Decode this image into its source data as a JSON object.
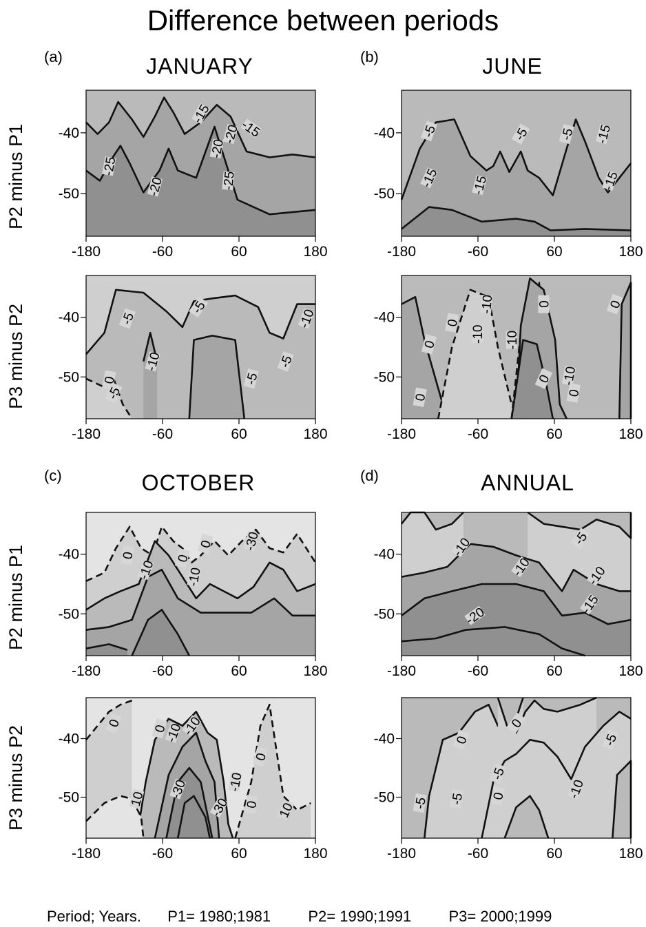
{
  "title": "Difference between periods",
  "row_labels": [
    "P2 minus P1",
    "P3 minus P2"
  ],
  "panels": [
    {
      "tag": "(a)",
      "month": "JANUARY"
    },
    {
      "tag": "(b)",
      "month": "JUNE"
    },
    {
      "tag": "(c)",
      "month": "OCTOBER"
    },
    {
      "tag": "(d)",
      "month": "ANNUAL"
    }
  ],
  "footer": {
    "period": "Period; Years.",
    "p1": "P1= 1980;1981",
    "p2": "P2= 1990;1991",
    "p3": "P3= 2000;1999"
  },
  "colors": {
    "fill_levels": [
      "#e4e4e4",
      "#cfcfcf",
      "#bababa",
      "#a5a5a5",
      "#909090"
    ],
    "contour": "#111111"
  },
  "chart_data": [
    {
      "type": "contour",
      "panel": "(a)",
      "row": "P2 minus P1",
      "x_ticks": [
        -180,
        -60,
        60,
        180
      ],
      "y_ticks": [
        -40,
        -50
      ],
      "xlim": [
        -180,
        180
      ],
      "ylim": [
        -57,
        -33
      ],
      "contour_labels": [
        "-15",
        "-15",
        "-20",
        "-20",
        "-25",
        "-20",
        "-25"
      ],
      "contour_levels": [
        -10,
        -15,
        -20,
        -25
      ]
    },
    {
      "type": "contour",
      "panel": "(b)",
      "row": "P2 minus P1",
      "x_ticks": [
        -180,
        -60,
        60,
        180
      ],
      "y_ticks": [
        -40,
        -50
      ],
      "xlim": [
        -180,
        180
      ],
      "ylim": [
        -57,
        -33
      ],
      "contour_labels": [
        "-5",
        "-5",
        "-5",
        "-15",
        "-15",
        "-15",
        "-15"
      ],
      "contour_levels": [
        -5,
        -10,
        -15,
        -20
      ]
    },
    {
      "type": "contour",
      "panel": "(a)",
      "row": "P3 minus P2",
      "x_ticks": [
        -180,
        -60,
        60,
        180
      ],
      "y_ticks": [
        -40,
        -50
      ],
      "xlim": [
        -180,
        180
      ],
      "ylim": [
        -57,
        -33
      ],
      "contour_labels": [
        "-5",
        "-5",
        "-10",
        "-10",
        "-5",
        "-5",
        "0",
        "-5"
      ],
      "contour_levels": [
        0,
        -5,
        -10
      ]
    },
    {
      "type": "contour",
      "panel": "(b)",
      "row": "P3 minus P2",
      "x_ticks": [
        -180,
        -60,
        60,
        180
      ],
      "y_ticks": [
        -40,
        -50
      ],
      "xlim": [
        -180,
        180
      ],
      "ylim": [
        -57,
        -33
      ],
      "contour_labels": [
        "-10",
        "0",
        "0",
        "-10",
        "-10",
        "0",
        "0",
        "-10",
        "0",
        "0",
        "0"
      ],
      "contour_levels": [
        10,
        0,
        -10,
        -20
      ]
    },
    {
      "type": "contour",
      "panel": "(c)",
      "row": "P2 minus P1",
      "x_ticks": [
        -180,
        -60,
        60,
        180
      ],
      "y_ticks": [
        -40,
        -50
      ],
      "xlim": [
        -180,
        180
      ],
      "ylim": [
        -57,
        -33
      ],
      "contour_labels": [
        "0",
        "-10",
        "-10",
        "0",
        "0",
        "-30"
      ],
      "contour_levels": [
        0,
        -10,
        -20,
        -30,
        -40
      ]
    },
    {
      "type": "contour",
      "panel": "(d)",
      "row": "P2 minus P1",
      "x_ticks": [
        -180,
        -60,
        60,
        180
      ],
      "y_ticks": [
        -40,
        -50
      ],
      "xlim": [
        -180,
        180
      ],
      "ylim": [
        -57,
        -33
      ],
      "contour_labels": [
        "-10",
        "-10",
        "-10",
        "-5",
        "-15",
        "-20"
      ],
      "contour_levels": [
        -5,
        -10,
        -15,
        -20,
        -25
      ]
    },
    {
      "type": "contour",
      "panel": "(c)",
      "row": "P3 minus P2",
      "x_ticks": [
        -180,
        -60,
        60,
        180
      ],
      "y_ticks": [
        -40,
        -50
      ],
      "xlim": [
        -180,
        180
      ],
      "ylim": [
        -57,
        -33
      ],
      "contour_labels": [
        "0",
        "0",
        "-10",
        "-10",
        "0",
        "10",
        "-30",
        "-30",
        "-10",
        "0",
        "10"
      ],
      "contour_levels": [
        10,
        0,
        -10,
        -20,
        -30,
        -40
      ]
    },
    {
      "type": "contour",
      "panel": "(d)",
      "row": "P3 minus P2",
      "x_ticks": [
        -180,
        -60,
        60,
        180
      ],
      "y_ticks": [
        -40,
        -50
      ],
      "xlim": [
        -180,
        180
      ],
      "ylim": [
        -57,
        -33
      ],
      "contour_labels": [
        "0",
        "0",
        "-5",
        "-5",
        "-5",
        "0",
        "-10",
        "-5"
      ],
      "contour_levels": [
        0,
        -5,
        -10
      ]
    }
  ]
}
